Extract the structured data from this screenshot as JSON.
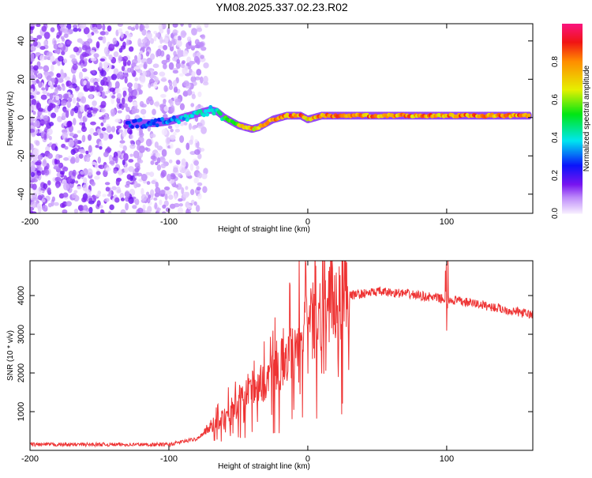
{
  "title": "YM08.2025.337.02.23.R02",
  "chart_data": [
    {
      "type": "heatmap",
      "xlabel": "Height of straight line (km)",
      "ylabel": "Frequency (Hz)",
      "xlim": [
        -200,
        162
      ],
      "ylim": [
        -50,
        49
      ],
      "xticks": [
        -200,
        -100,
        0,
        100
      ],
      "yticks": [
        -40,
        -20,
        0,
        20,
        40
      ],
      "colorbar": {
        "label": "Normalized spectral amplitude",
        "range": [
          0,
          1
        ],
        "ticks": [
          "0.0",
          "0.2",
          "0.4",
          "0.6",
          "0.8"
        ]
      },
      "noise_region_x": [
        -200,
        -88
      ],
      "ridge": {
        "x": [
          -130,
          -110,
          -100,
          -90,
          -80,
          -70,
          -65,
          -60,
          -50,
          -40,
          -35,
          -25,
          -15,
          -5,
          0,
          10,
          20,
          160
        ],
        "freq": [
          -3,
          -3,
          -2,
          0,
          2,
          4,
          3,
          0,
          -4,
          -6,
          -5,
          -1,
          1,
          1,
          -1,
          1,
          1,
          1
        ],
        "amplitude": [
          0.3,
          0.3,
          0.35,
          0.4,
          0.45,
          0.45,
          0.45,
          0.55,
          0.7,
          0.8,
          0.8,
          0.8,
          0.9,
          0.9,
          0.8,
          0.85,
          0.85,
          0.85
        ]
      }
    },
    {
      "type": "line",
      "xlabel": "Height of straight line (km)",
      "ylabel": "SNR (10 * v/v)",
      "xlim": [
        -200,
        162
      ],
      "ylim": [
        0,
        4900
      ],
      "xticks": [
        -200,
        -100,
        0,
        100
      ],
      "yticks": [
        1000,
        2000,
        3000,
        4000
      ],
      "color": "#ee3333",
      "series": [
        {
          "name": "SNR",
          "x": [
            -200,
            -100,
            -80,
            -70,
            -60,
            -50,
            -40,
            -30,
            -20,
            -10,
            0,
            10,
            20,
            30,
            50,
            70,
            90,
            100,
            120,
            140,
            162
          ],
          "y": [
            150,
            150,
            300,
            600,
            900,
            1200,
            1600,
            1800,
            2200,
            2800,
            3200,
            3600,
            3900,
            4000,
            4100,
            4050,
            3950,
            3900,
            3800,
            3650,
            3500
          ]
        }
      ]
    }
  ]
}
